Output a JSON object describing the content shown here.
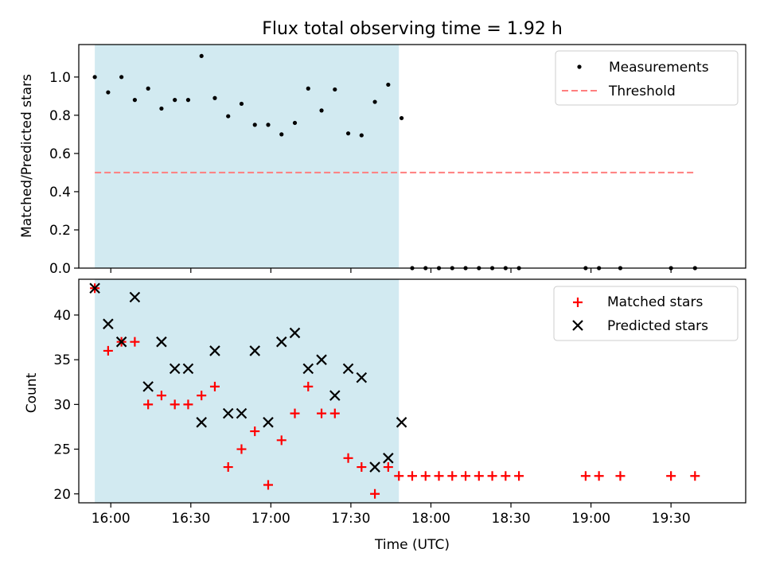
{
  "title": "Flux total observing time = 1.92 h",
  "colors": {
    "shade": "#add8e6",
    "threshold": "#ff7f7f",
    "matched": "#ff0000",
    "predicted": "#000000",
    "measurements": "#000000"
  },
  "chart_data": [
    {
      "type": "scatter",
      "ylabel": "Matched/Predicted stars",
      "xlim": [
        "15:48",
        "19:58"
      ],
      "ylim": [
        0,
        1.17
      ],
      "shaded_interval": [
        "15:54",
        "17:48"
      ],
      "legend_position": "top-right",
      "ytick_labels": [
        "0.0",
        "0.2",
        "0.4",
        "0.6",
        "0.8",
        "1.0"
      ],
      "series": [
        {
          "name": "Measurements",
          "marker": "dot",
          "x": [
            "15:54",
            "15:59",
            "16:04",
            "16:09",
            "16:14",
            "16:19",
            "16:24",
            "16:29",
            "16:34",
            "16:39",
            "16:44",
            "16:49",
            "16:54",
            "16:59",
            "17:04",
            "17:09",
            "17:14",
            "17:19",
            "17:24",
            "17:29",
            "17:34",
            "17:39",
            "17:44",
            "17:49",
            "17:53",
            "17:58",
            "18:03",
            "18:08",
            "18:13",
            "18:18",
            "18:23",
            "18:28",
            "18:33",
            "18:58",
            "19:03",
            "19:11",
            "19:30",
            "19:39"
          ],
          "y": [
            1.0,
            0.92,
            1.0,
            0.88,
            0.94,
            0.835,
            0.88,
            0.88,
            1.11,
            0.89,
            0.795,
            0.86,
            0.75,
            0.75,
            0.7,
            0.76,
            0.94,
            0.825,
            0.935,
            0.705,
            0.695,
            0.87,
            0.96,
            0.785,
            0,
            0,
            0,
            0,
            0,
            0,
            0,
            0,
            0,
            0,
            0,
            0,
            0,
            0
          ]
        },
        {
          "name": "Threshold",
          "style": "dashed",
          "x": [
            "15:54",
            "19:39"
          ],
          "y": [
            0.5,
            0.5
          ]
        }
      ]
    },
    {
      "type": "scatter",
      "xlabel": "Time (UTC)",
      "ylabel": "Count",
      "xlim": [
        "15:48",
        "19:58"
      ],
      "ylim": [
        19,
        44
      ],
      "shaded_interval": [
        "15:54",
        "17:48"
      ],
      "legend_position": "top-right",
      "ytick_labels": [
        "20",
        "25",
        "30",
        "35",
        "40"
      ],
      "xtick_labels": [
        "16:00",
        "16:30",
        "17:00",
        "17:30",
        "18:00",
        "18:30",
        "19:00",
        "19:30"
      ],
      "series": [
        {
          "name": "Matched stars",
          "marker": "plus",
          "x": [
            "15:54",
            "15:59",
            "16:04",
            "16:09",
            "16:14",
            "16:19",
            "16:24",
            "16:29",
            "16:34",
            "16:39",
            "16:44",
            "16:49",
            "16:54",
            "16:59",
            "17:04",
            "17:09",
            "17:14",
            "17:19",
            "17:24",
            "17:29",
            "17:34",
            "17:39",
            "17:44",
            "17:48",
            "17:53",
            "17:58",
            "18:03",
            "18:08",
            "18:13",
            "18:18",
            "18:23",
            "18:28",
            "18:33",
            "18:58",
            "19:03",
            "19:11",
            "19:30",
            "19:39"
          ],
          "y": [
            43,
            36,
            37,
            37,
            30,
            31,
            30,
            30,
            31,
            32,
            23,
            25,
            27,
            21,
            26,
            29,
            32,
            29,
            29,
            24,
            23,
            20,
            23,
            22,
            22,
            22,
            22,
            22,
            22,
            22,
            22,
            22,
            22,
            22,
            22,
            22,
            22,
            22
          ]
        },
        {
          "name": "Predicted stars",
          "marker": "x",
          "x": [
            "15:54",
            "15:59",
            "16:04",
            "16:09",
            "16:14",
            "16:19",
            "16:24",
            "16:29",
            "16:34",
            "16:39",
            "16:44",
            "16:49",
            "16:54",
            "16:59",
            "17:04",
            "17:09",
            "17:14",
            "17:19",
            "17:24",
            "17:29",
            "17:34",
            "17:39",
            "17:44",
            "17:49"
          ],
          "y": [
            43,
            39,
            37,
            42,
            32,
            37,
            34,
            34,
            28,
            36,
            29,
            29,
            36,
            28,
            37,
            38,
            34,
            35,
            31,
            34,
            33,
            23,
            24,
            28
          ]
        }
      ]
    }
  ]
}
